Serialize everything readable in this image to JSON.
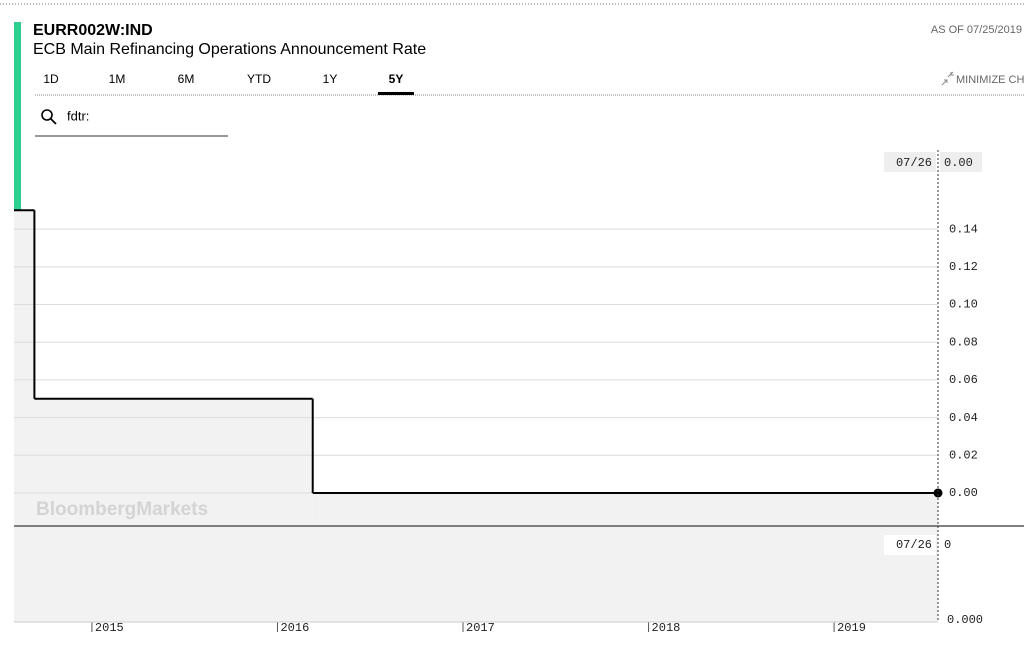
{
  "header": {
    "ticker": "EURR002W:IND",
    "name": "ECB Main Refinancing Operations Announcement Rate",
    "as_of": "AS OF 07/25/2019",
    "minimize": "MINIMIZE CH"
  },
  "tabs": [
    "1D",
    "1M",
    "6M",
    "YTD",
    "1Y",
    "5Y"
  ],
  "active_tab": 5,
  "search": "fdtr:",
  "chart_data": {
    "type": "step",
    "watermark": "BloombergMarkets",
    "x": [
      2014.58,
      2014.69,
      2016.19,
      2019.56
    ],
    "values": [
      0.15,
      0.05,
      0.0,
      0.0
    ],
    "color": "#000000",
    "area_color": "#f2f2f2",
    "xlim": [
      2014.58,
      2019.56
    ],
    "xticks": [
      2015,
      2016,
      2017,
      2018,
      2019
    ],
    "ylim": [
      -0.017,
      0.182
    ],
    "yticks": [
      {
        "value": 0.0,
        "label": "0.00"
      },
      {
        "value": 0.02,
        "label": "0.02"
      },
      {
        "value": 0.04,
        "label": "0.04"
      },
      {
        "value": 0.06,
        "label": "0.06"
      },
      {
        "value": 0.08,
        "label": "0.08"
      },
      {
        "value": 0.1,
        "label": "0.10"
      },
      {
        "value": 0.12,
        "label": "0.12"
      },
      {
        "value": 0.14,
        "label": "0.14"
      }
    ],
    "grid": true,
    "last_date_label": "07/26",
    "last_value_label": "0.00",
    "lower_panel": {
      "date_label": "07/26",
      "value": 0,
      "axis_label": "0.000"
    }
  }
}
